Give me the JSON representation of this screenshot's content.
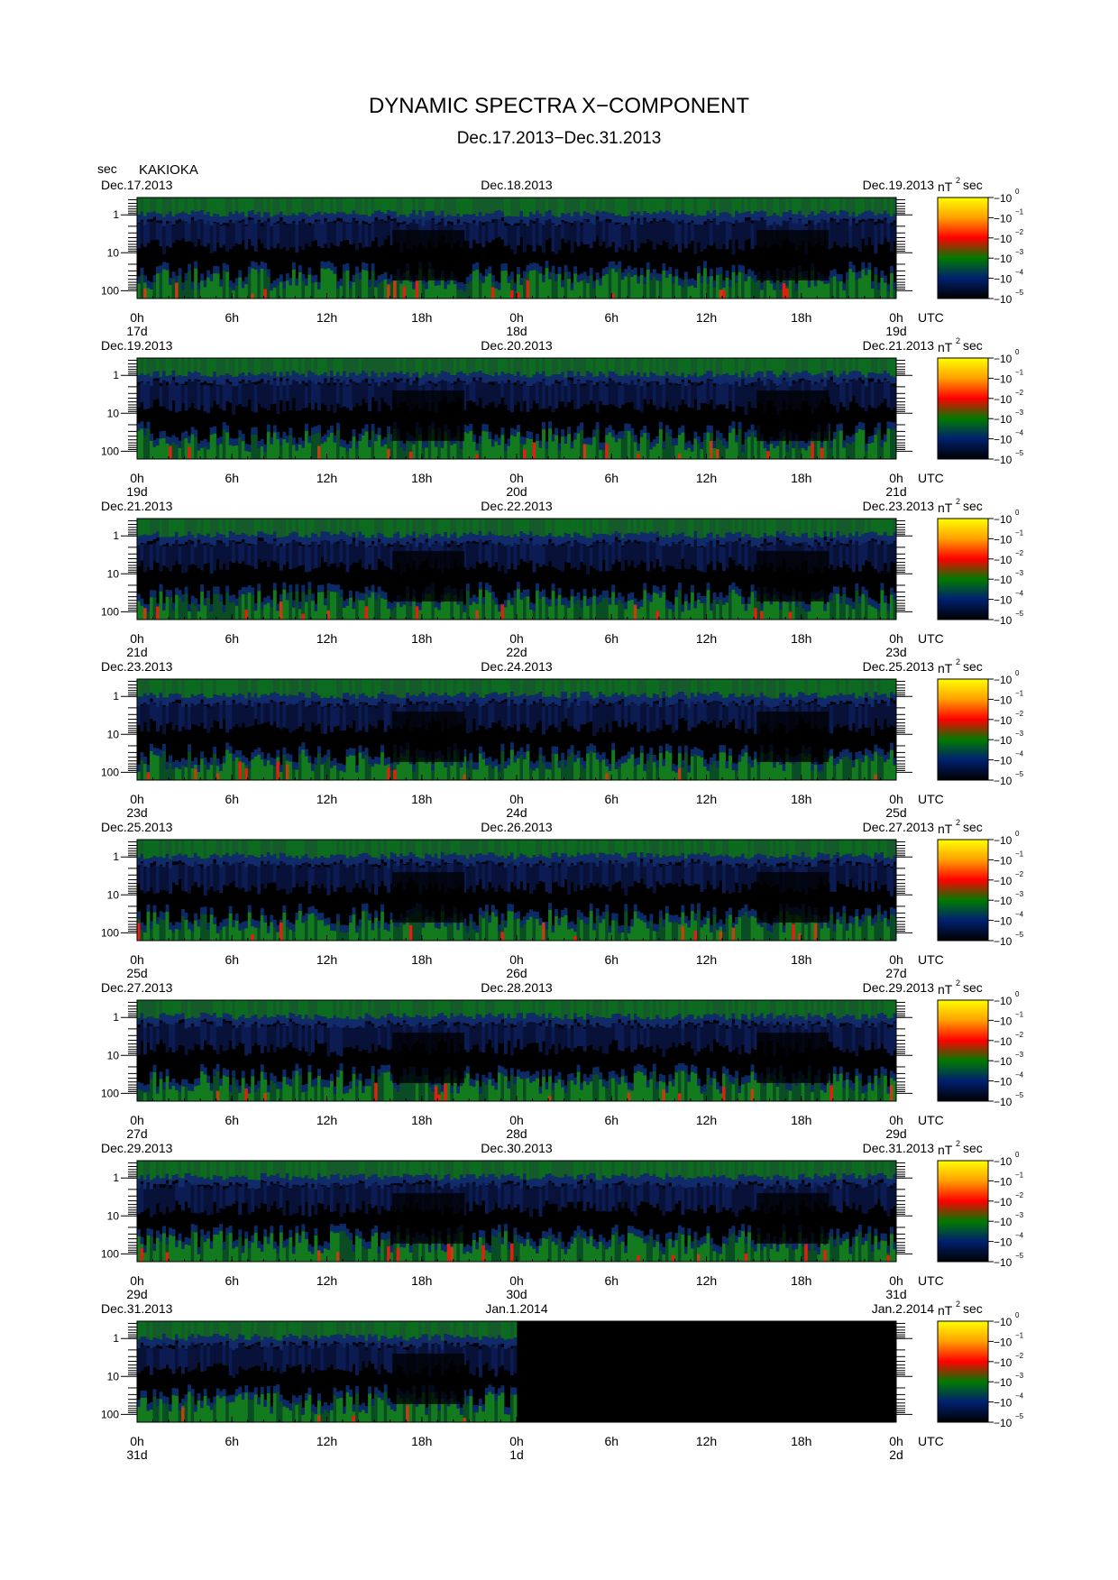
{
  "title": "DYNAMIC SPECTRA X−COMPONENT",
  "subtitle": "Dec.17.2013−Dec.31.2013",
  "station": "KAKIOKA",
  "y_unit_label": "sec",
  "timezone_label": "UTC",
  "colorbar": {
    "unit": "nT",
    "unit_exp": "2",
    "unit_suffix": "sec",
    "ticks": [
      {
        "base": "10",
        "exp": "0"
      },
      {
        "base": "10",
        "exp": "−1"
      },
      {
        "base": "10",
        "exp": "−2"
      },
      {
        "base": "10",
        "exp": "−3"
      },
      {
        "base": "10",
        "exp": "−4"
      },
      {
        "base": "10",
        "exp": "−5"
      }
    ],
    "colors": [
      "#ffff00",
      "#ffa000",
      "#ff0000",
      "#007a00",
      "#002070",
      "#000000"
    ]
  },
  "chart_data": {
    "type": "heatmap",
    "title": "DYNAMIC SPECTRA X−COMPONENT",
    "subtitle": "Dec.17.2013−Dec.31.2013",
    "ylabel": "sec",
    "y_scale": "log",
    "y_ticks": [
      "1",
      "10",
      "100"
    ],
    "x_ticks": [
      "0h",
      "6h",
      "12h",
      "18h",
      "0h",
      "6h",
      "12h",
      "18h",
      "0h"
    ],
    "x_unit": "UTC",
    "z_unit": "nT²sec",
    "z_scale": "log",
    "z_range": [
      1e-05,
      1
    ],
    "panels": [
      {
        "left_date": "Dec.17.2013",
        "mid_date": "Dec.18.2013",
        "right_date": "Dec.19.2013",
        "day_labels": [
          "17d",
          "18d",
          "19d"
        ],
        "data_fraction": 1.0
      },
      {
        "left_date": "Dec.19.2013",
        "mid_date": "Dec.20.2013",
        "right_date": "Dec.21.2013",
        "day_labels": [
          "19d",
          "20d",
          "21d"
        ],
        "data_fraction": 1.0
      },
      {
        "left_date": "Dec.21.2013",
        "mid_date": "Dec.22.2013",
        "right_date": "Dec.23.2013",
        "day_labels": [
          "21d",
          "22d",
          "23d"
        ],
        "data_fraction": 1.0
      },
      {
        "left_date": "Dec.23.2013",
        "mid_date": "Dec.24.2013",
        "right_date": "Dec.25.2013",
        "day_labels": [
          "23d",
          "24d",
          "25d"
        ],
        "data_fraction": 1.0
      },
      {
        "left_date": "Dec.25.2013",
        "mid_date": "Dec.26.2013",
        "right_date": "Dec.27.2013",
        "day_labels": [
          "25d",
          "26d",
          "27d"
        ],
        "data_fraction": 1.0
      },
      {
        "left_date": "Dec.27.2013",
        "mid_date": "Dec.28.2013",
        "right_date": "Dec.29.2013",
        "day_labels": [
          "27d",
          "28d",
          "29d"
        ],
        "data_fraction": 1.0
      },
      {
        "left_date": "Dec.29.2013",
        "mid_date": "Dec.30.2013",
        "right_date": "Dec.31.2013",
        "day_labels": [
          "29d",
          "30d",
          "31d"
        ],
        "data_fraction": 1.0
      },
      {
        "left_date": "Dec.31.2013",
        "mid_date": "Jan.1.2014",
        "right_date": "Jan.2.2014",
        "day_labels": [
          "31d",
          "1d",
          "2d"
        ],
        "data_fraction": 0.5
      }
    ]
  }
}
